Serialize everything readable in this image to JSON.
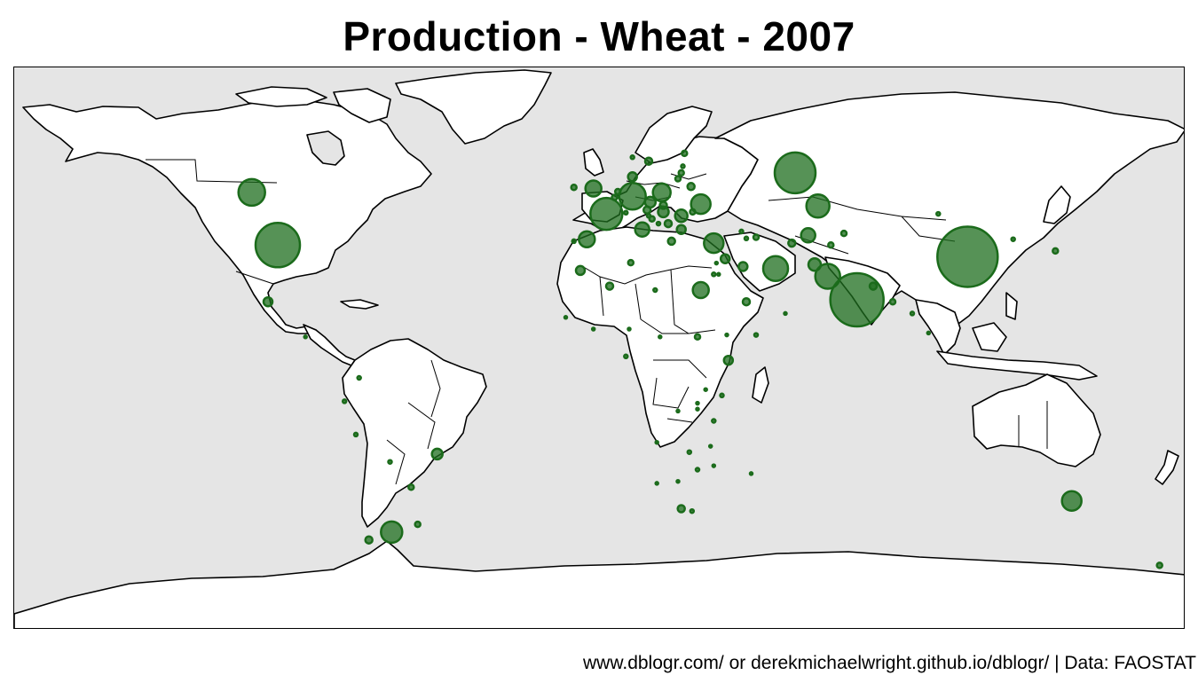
{
  "title": "Production - Wheat - 2007",
  "caption": "www.dblogr.com/ or derekmichaelwright.github.io/dblogr/ | Data: FAOSTAT",
  "colors": {
    "ocean": "#e5e5e5",
    "land": "#ffffff",
    "bubble": "#1e6e1e",
    "outline": "#000000"
  },
  "chart_data": {
    "type": "bubble-map",
    "title": "Production - Wheat - 2007",
    "size_encoding": "production",
    "points": [
      {
        "region": "China",
        "lon": 113,
        "lat": 35.5,
        "size": 34
      },
      {
        "region": "India",
        "lon": 79,
        "lat": 24.5,
        "size": 30
      },
      {
        "region": "USA",
        "lon": -99,
        "lat": 38.5,
        "size": 25
      },
      {
        "region": "Russia",
        "lon": 60,
        "lat": 57,
        "size": 23
      },
      {
        "region": "France",
        "lon": 2,
        "lat": 46.5,
        "size": 18
      },
      {
        "region": "Germany",
        "lon": 10,
        "lat": 51,
        "size": 15
      },
      {
        "region": "Canada",
        "lon": -107,
        "lat": 52,
        "size": 15
      },
      {
        "region": "Kazakhstan",
        "lon": 67,
        "lat": 48.5,
        "size": 13
      },
      {
        "region": "Pakistan",
        "lon": 70,
        "lat": 30.5,
        "size": 14
      },
      {
        "region": "Turkey",
        "lon": 35,
        "lat": 39,
        "size": 11
      },
      {
        "region": "Ukraine",
        "lon": 31,
        "lat": 49,
        "size": 11
      },
      {
        "region": "Iran",
        "lon": 54,
        "lat": 32.5,
        "size": 14
      },
      {
        "region": "Argentina",
        "lon": -64,
        "lat": -35,
        "size": 12
      },
      {
        "region": "Australia",
        "lon": 145,
        "lat": -27,
        "size": 11
      },
      {
        "region": "United Kingdom",
        "lon": -2,
        "lat": 53,
        "size": 9
      },
      {
        "region": "Poland",
        "lon": 19,
        "lat": 52,
        "size": 10
      },
      {
        "region": "Spain",
        "lon": -4,
        "lat": 40,
        "size": 9
      },
      {
        "region": "Egypt",
        "lon": 31,
        "lat": 27,
        "size": 9
      },
      {
        "region": "Romania",
        "lon": 25,
        "lat": 46,
        "size": 7
      },
      {
        "region": "Italy",
        "lon": 13,
        "lat": 42.5,
        "size": 8
      },
      {
        "region": "Uzbekistan",
        "lon": 64,
        "lat": 41,
        "size": 8
      },
      {
        "region": "Afghanistan",
        "lon": 66,
        "lat": 33.5,
        "size": 7
      },
      {
        "region": "Brazil",
        "lon": -50,
        "lat": -15,
        "size": 6
      },
      {
        "region": "Czechia",
        "lon": 15.5,
        "lat": 49.5,
        "size": 6
      },
      {
        "region": "Hungary",
        "lon": 19.5,
        "lat": 47,
        "size": 6
      },
      {
        "region": "Bulgaria",
        "lon": 25,
        "lat": 42.5,
        "size": 5
      },
      {
        "region": "Serbia",
        "lon": 21,
        "lat": 44,
        "size": 4
      },
      {
        "region": "Denmark",
        "lon": 10,
        "lat": 56,
        "size": 5
      },
      {
        "region": "Sweden",
        "lon": 15,
        "lat": 60,
        "size": 4
      },
      {
        "region": "Belarus",
        "lon": 28,
        "lat": 53.5,
        "size": 4
      },
      {
        "region": "Morocco",
        "lon": -6,
        "lat": 32,
        "size": 5
      },
      {
        "region": "Mexico",
        "lon": -102,
        "lat": 24,
        "size": 5
      },
      {
        "region": "Syria",
        "lon": 38.5,
        "lat": 35,
        "size": 5
      },
      {
        "region": "Ethiopia",
        "lon": 39.5,
        "lat": 9,
        "size": 5
      },
      {
        "region": "Iraq",
        "lon": 44,
        "lat": 33,
        "size": 5
      },
      {
        "region": "Algeria",
        "lon": 3,
        "lat": 28,
        "size": 4
      },
      {
        "region": "Saudi Arabia",
        "lon": 45,
        "lat": 24,
        "size": 4
      },
      {
        "region": "South Africa",
        "lon": 25,
        "lat": -29,
        "size": 4
      },
      {
        "region": "Nepal",
        "lon": 84,
        "lat": 28,
        "size": 4
      },
      {
        "region": "Turkmenistan",
        "lon": 59,
        "lat": 39,
        "size": 4
      },
      {
        "region": "Tunisia",
        "lon": 9.5,
        "lat": 34,
        "size": 3
      },
      {
        "region": "Libya",
        "lon": 17,
        "lat": 27,
        "size": 2
      },
      {
        "region": "Sudan",
        "lon": 30,
        "lat": 15,
        "size": 3
      },
      {
        "region": "Kyrgyzstan",
        "lon": 75,
        "lat": 41.5,
        "size": 3
      },
      {
        "region": "Azerbaijan",
        "lon": 48,
        "lat": 40.5,
        "size": 3
      },
      {
        "region": "Georgia",
        "lon": 43.5,
        "lat": 42,
        "size": 2
      },
      {
        "region": "Armenia",
        "lon": 45,
        "lat": 40.2,
        "size": 2
      },
      {
        "region": "Lithuania",
        "lon": 24,
        "lat": 55.5,
        "size": 3
      },
      {
        "region": "Latvia",
        "lon": 25,
        "lat": 57,
        "size": 3
      },
      {
        "region": "Finland",
        "lon": 26,
        "lat": 62,
        "size": 3
      },
      {
        "region": "Norway",
        "lon": 10,
        "lat": 61,
        "size": 2
      },
      {
        "region": "Ireland",
        "lon": -8,
        "lat": 53.3,
        "size": 3
      },
      {
        "region": "Austria",
        "lon": 14.5,
        "lat": 47.5,
        "size": 4
      },
      {
        "region": "Slovakia",
        "lon": 19.5,
        "lat": 48.7,
        "size": 4
      },
      {
        "region": "Croatia",
        "lon": 16,
        "lat": 45.2,
        "size": 3
      },
      {
        "region": "Greece",
        "lon": 22,
        "lat": 39.5,
        "size": 4
      },
      {
        "region": "Moldova",
        "lon": 28.5,
        "lat": 47,
        "size": 3
      },
      {
        "region": "Netherlands",
        "lon": 5.5,
        "lat": 52.2,
        "size": 3
      },
      {
        "region": "Belgium",
        "lon": 4.5,
        "lat": 50.7,
        "size": 3
      },
      {
        "region": "Switzerland",
        "lon": 8,
        "lat": 46.8,
        "size": 2
      },
      {
        "region": "Portugal",
        "lon": -8,
        "lat": 39.5,
        "size": 2
      },
      {
        "region": "Bosnia",
        "lon": 18,
        "lat": 44,
        "size": 2
      },
      {
        "region": "Slovenia",
        "lon": 15,
        "lat": 46,
        "size": 2
      },
      {
        "region": "Estonia",
        "lon": 25.5,
        "lat": 58.7,
        "size": 2
      },
      {
        "region": "Israel",
        "lon": 35,
        "lat": 31,
        "size": 2
      },
      {
        "region": "Lebanon",
        "lon": 35.8,
        "lat": 33.9,
        "size": 1.5
      },
      {
        "region": "Jordan",
        "lon": 36.5,
        "lat": 31,
        "size": 1.5
      },
      {
        "region": "Yemen",
        "lon": 48,
        "lat": 15.5,
        "size": 2
      },
      {
        "region": "Oman",
        "lon": 57,
        "lat": 21,
        "size": 1.5
      },
      {
        "region": "Tajikistan",
        "lon": 71,
        "lat": 38.5,
        "size": 3
      },
      {
        "region": "Bangladesh",
        "lon": 90,
        "lat": 24,
        "size": 3
      },
      {
        "region": "Mongolia",
        "lon": 104,
        "lat": 46.5,
        "size": 2
      },
      {
        "region": "North Korea",
        "lon": 127,
        "lat": 40,
        "size": 2
      },
      {
        "region": "Japan",
        "lon": 140,
        "lat": 37,
        "size": 3
      },
      {
        "region": "Myanmar",
        "lon": 96,
        "lat": 21,
        "size": 2
      },
      {
        "region": "Thailand",
        "lon": 101,
        "lat": 16,
        "size": 1.5
      },
      {
        "region": "Chile",
        "lon": -71,
        "lat": -37,
        "size": 4
      },
      {
        "region": "Uruguay",
        "lon": -56,
        "lat": -33,
        "size": 3
      },
      {
        "region": "Paraguay",
        "lon": -58,
        "lat": -23.5,
        "size": 3
      },
      {
        "region": "Bolivia",
        "lon": -64.5,
        "lat": -17,
        "size": 2
      },
      {
        "region": "Peru",
        "lon": -75,
        "lat": -10,
        "size": 2
      },
      {
        "region": "Ecuador",
        "lon": -78.5,
        "lat": -1.5,
        "size": 2
      },
      {
        "region": "Colombia",
        "lon": -74,
        "lat": 4.5,
        "size": 2
      },
      {
        "region": "Guatemala",
        "lon": -90.5,
        "lat": 15,
        "size": 1.5
      },
      {
        "region": "New Zealand",
        "lon": 172,
        "lat": -43.5,
        "size": 3
      },
      {
        "region": "Kenya",
        "lon": 37.5,
        "lat": 0,
        "size": 2
      },
      {
        "region": "Tanzania",
        "lon": 35,
        "lat": -6.5,
        "size": 2
      },
      {
        "region": "Zambia",
        "lon": 27.5,
        "lat": -14.5,
        "size": 2
      },
      {
        "region": "Zimbabwe",
        "lon": 30,
        "lat": -19,
        "size": 2
      },
      {
        "region": "Lesotho",
        "lon": 28.3,
        "lat": -29.6,
        "size": 2
      },
      {
        "region": "Malawi",
        "lon": 34,
        "lat": -13,
        "size": 1.5
      },
      {
        "region": "Mozambique",
        "lon": 35,
        "lat": -18,
        "size": 1.5
      },
      {
        "region": "Madagascar",
        "lon": 46.5,
        "lat": -20,
        "size": 1.5
      },
      {
        "region": "Angola",
        "lon": 17.5,
        "lat": -12,
        "size": 1.5
      },
      {
        "region": "Namibia",
        "lon": 17.5,
        "lat": -22.5,
        "size": 1.5
      },
      {
        "region": "Botswana",
        "lon": 24,
        "lat": -22,
        "size": 1.5
      },
      {
        "region": "Nigeria",
        "lon": 8,
        "lat": 10,
        "size": 2
      },
      {
        "region": "Niger",
        "lon": 9,
        "lat": 17,
        "size": 1.5
      },
      {
        "region": "Chad",
        "lon": 18.5,
        "lat": 15,
        "size": 1.5
      },
      {
        "region": "Mali",
        "lon": -2,
        "lat": 17,
        "size": 1.5
      },
      {
        "region": "Mauritania",
        "lon": -10.5,
        "lat": 20,
        "size": 1.5
      },
      {
        "region": "Eritrea",
        "lon": 39,
        "lat": 15.5,
        "size": 1.5
      },
      {
        "region": "Rwanda",
        "lon": 30,
        "lat": -2,
        "size": 1.5
      },
      {
        "region": "Burundi",
        "lon": 30,
        "lat": -3.5,
        "size": 1.5
      },
      {
        "region": "Uganda",
        "lon": 32.5,
        "lat": 1.5,
        "size": 1.5
      },
      {
        "region": "DR Congo",
        "lon": 24,
        "lat": -4,
        "size": 1.5
      }
    ]
  }
}
